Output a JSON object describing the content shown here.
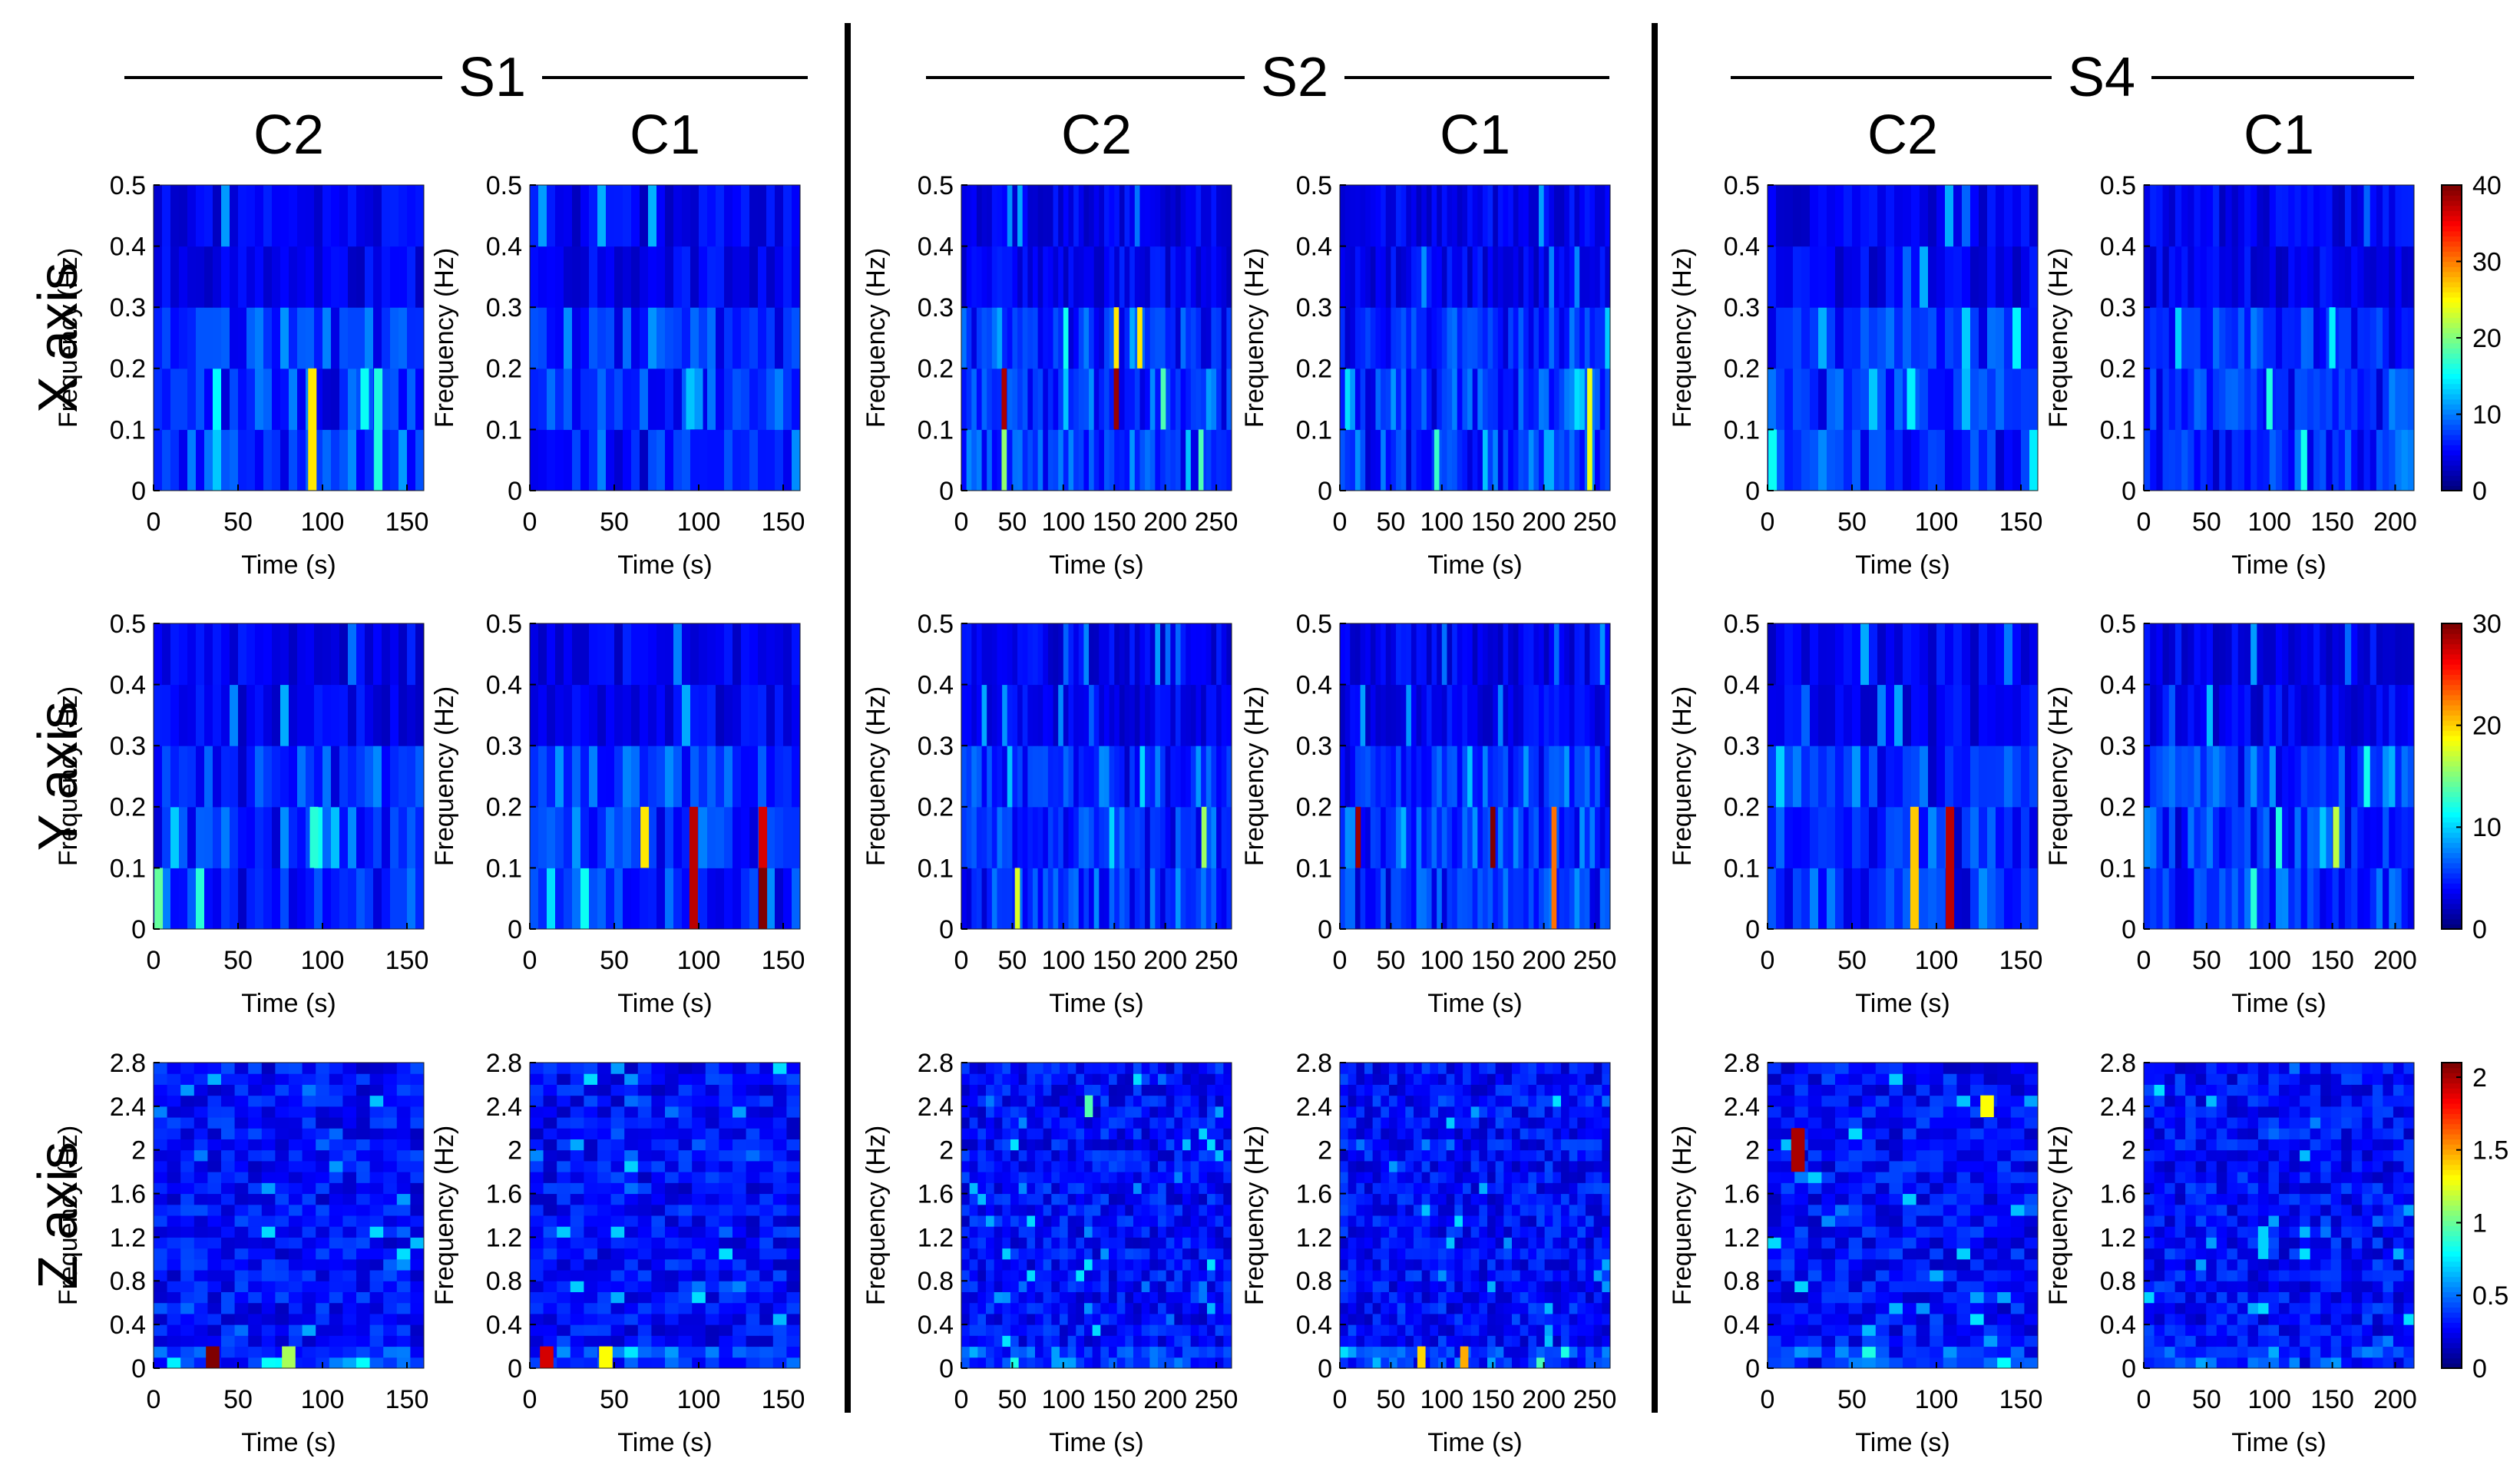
{
  "rows": [
    {
      "label": "X axis",
      "ylim": [
        0,
        0.5
      ],
      "yticks": [
        "0.5",
        "0.4",
        "0.3",
        "0.2",
        "0.1",
        "0"
      ],
      "colorbar_ticks": [
        "40",
        "30",
        "20",
        "10",
        "0"
      ],
      "colorbar_max": 40
    },
    {
      "label": "Y axis",
      "ylim": [
        0,
        0.5
      ],
      "yticks": [
        "0.5",
        "0.4",
        "0.3",
        "0.2",
        "0.1",
        "0"
      ],
      "colorbar_ticks": [
        "30",
        "20",
        "10",
        "0"
      ],
      "colorbar_max": 30
    },
    {
      "label": "Z axis",
      "ylim": [
        0,
        2.8
      ],
      "yticks": [
        "2.8",
        "2.4",
        "2",
        "1.6",
        "1.2",
        "0.8",
        "0.4",
        "0"
      ],
      "colorbar_ticks": [
        "2",
        "1.5",
        "1",
        "0.5",
        "0"
      ],
      "colorbar_max": 2.1
    }
  ],
  "groups": [
    {
      "label": "S1",
      "columns": [
        {
          "label": "C2",
          "xticks": [
            "0",
            "50",
            "100",
            "150"
          ],
          "xmax": 160
        },
        {
          "label": "C1",
          "xticks": [
            "0",
            "50",
            "100",
            "150"
          ],
          "xmax": 160
        }
      ]
    },
    {
      "label": "S2",
      "columns": [
        {
          "label": "C2",
          "xticks": [
            "0",
            "50",
            "100",
            "150",
            "200",
            "250"
          ],
          "xmax": 265
        },
        {
          "label": "C1",
          "xticks": [
            "0",
            "50",
            "100",
            "150",
            "200",
            "250"
          ],
          "xmax": 265
        }
      ]
    },
    {
      "label": "S4",
      "columns": [
        {
          "label": "C2",
          "xticks": [
            "0",
            "50",
            "100",
            "150"
          ],
          "xmax": 160
        },
        {
          "label": "C1",
          "xticks": [
            "0",
            "50",
            "100",
            "150",
            "200"
          ],
          "xmax": 215
        }
      ]
    }
  ],
  "xlabel": "Time (s)",
  "ylabel": "Frequency (Hz)",
  "chart_data": {
    "type": "heatmap",
    "title": "",
    "description_rows": [
      "X axis",
      "Y axis",
      "Z axis"
    ],
    "colormap": "jet",
    "xlabel": "Time (s)",
    "ylabel": "Frequency (Hz)",
    "panels": [
      {
        "row": "X axis",
        "group": "S1",
        "col": "C2",
        "hotspots": [
          {
            "t": 94,
            "f_low": 0,
            "f_high": 0.2,
            "value": 24
          },
          {
            "t": 133,
            "f_low": 0,
            "f_high": 0.2,
            "value": 13
          },
          {
            "t": 125,
            "f_low": 0.1,
            "f_high": 0.2,
            "value": 12
          }
        ]
      },
      {
        "row": "X axis",
        "group": "S1",
        "col": "C1",
        "hotspots": [
          {
            "t": 95,
            "f_low": 0.1,
            "f_high": 0.2,
            "value": 9
          },
          {
            "t": 100,
            "f_low": 0.1,
            "f_high": 0.2,
            "value": 7
          }
        ]
      },
      {
        "row": "X axis",
        "group": "S2",
        "col": "C2",
        "hotspots": [
          {
            "t": 42,
            "f_low": 0.1,
            "f_high": 0.2,
            "value": 38
          },
          {
            "t": 42,
            "f_low": 0,
            "f_high": 0.1,
            "value": 18
          },
          {
            "t": 152,
            "f_low": 0.1,
            "f_high": 0.2,
            "value": 39
          },
          {
            "t": 152,
            "f_low": 0.2,
            "f_high": 0.3,
            "value": 24
          },
          {
            "t": 175,
            "f_low": 0.2,
            "f_high": 0.3,
            "value": 24
          },
          {
            "t": 235,
            "f_low": 0,
            "f_high": 0.1,
            "value": 15
          },
          {
            "t": 198,
            "f_low": 0.1,
            "f_high": 0.2,
            "value": 15
          }
        ]
      },
      {
        "row": "X axis",
        "group": "S2",
        "col": "C1",
        "hotspots": [
          {
            "t": 245,
            "f_low": 0,
            "f_high": 0.2,
            "value": 22
          },
          {
            "t": 95,
            "f_low": 0,
            "f_high": 0.1,
            "value": 14
          }
        ]
      },
      {
        "row": "X axis",
        "group": "S4",
        "col": "C2",
        "hotspots": [
          {
            "t": 3,
            "f_low": 0,
            "f_high": 0.1,
            "value": 12
          },
          {
            "t": 85,
            "f_low": 0.1,
            "f_high": 0.2,
            "value": 11
          }
        ]
      },
      {
        "row": "X axis",
        "group": "S4",
        "col": "C1",
        "hotspots": [
          {
            "t": 100,
            "f_low": 0.1,
            "f_high": 0.2,
            "value": 13
          },
          {
            "t": 150,
            "f_low": 0.2,
            "f_high": 0.3,
            "value": 11
          }
        ]
      },
      {
        "row": "Y axis",
        "group": "S1",
        "col": "C2",
        "hotspots": [
          {
            "t": 3,
            "f_low": 0,
            "f_high": 0.1,
            "value": 12
          },
          {
            "t": 95,
            "f_low": 0.1,
            "f_high": 0.2,
            "value": 10
          }
        ]
      },
      {
        "row": "Y axis",
        "group": "S1",
        "col": "C1",
        "hotspots": [
          {
            "t": 97,
            "f_low": 0,
            "f_high": 0.2,
            "value": 28
          },
          {
            "t": 138,
            "f_low": 0.1,
            "f_high": 0.2,
            "value": 27
          },
          {
            "t": 138,
            "f_low": 0,
            "f_high": 0.1,
            "value": 30
          },
          {
            "t": 68,
            "f_low": 0.1,
            "f_high": 0.2,
            "value": 18
          }
        ]
      },
      {
        "row": "Y axis",
        "group": "S2",
        "col": "C2",
        "hotspots": [
          {
            "t": 55,
            "f_low": 0,
            "f_high": 0.1,
            "value": 16
          },
          {
            "t": 238,
            "f_low": 0.1,
            "f_high": 0.2,
            "value": 14
          }
        ]
      },
      {
        "row": "Y axis",
        "group": "S2",
        "col": "C1",
        "hotspots": [
          {
            "t": 18,
            "f_low": 0.1,
            "f_high": 0.2,
            "value": 29
          },
          {
            "t": 150,
            "f_low": 0.1,
            "f_high": 0.2,
            "value": 30
          },
          {
            "t": 210,
            "f_low": 0,
            "f_high": 0.2,
            "value": 22
          }
        ]
      },
      {
        "row": "Y axis",
        "group": "S4",
        "col": "C2",
        "hotspots": [
          {
            "t": 108,
            "f_low": 0,
            "f_high": 0.2,
            "value": 28
          },
          {
            "t": 87,
            "f_low": 0,
            "f_high": 0.2,
            "value": 19
          }
        ]
      },
      {
        "row": "Y axis",
        "group": "S4",
        "col": "C1",
        "hotspots": [
          {
            "t": 153,
            "f_low": 0.1,
            "f_high": 0.2,
            "value": 15
          }
        ]
      },
      {
        "row": "Z axis",
        "group": "S1",
        "col": "C2",
        "hotspots": [
          {
            "t": 35,
            "f_low": 0,
            "f_high": 0.2,
            "value": 2.1
          },
          {
            "t": 80,
            "f_low": 0,
            "f_high": 0.2,
            "value": 1.0
          }
        ]
      },
      {
        "row": "Z axis",
        "group": "S1",
        "col": "C1",
        "hotspots": [
          {
            "t": 10,
            "f_low": 0,
            "f_high": 0.2,
            "value": 1.9
          },
          {
            "t": 45,
            "f_low": 0,
            "f_high": 0.2,
            "value": 1.2
          }
        ]
      },
      {
        "row": "Z axis",
        "group": "S2",
        "col": "C2",
        "hotspots": [
          {
            "t": 125,
            "f_low": 2.3,
            "f_high": 2.5,
            "value": 0.8
          }
        ]
      },
      {
        "row": "Z axis",
        "group": "S2",
        "col": "C1",
        "hotspots": [
          {
            "t": 80,
            "f_low": 0,
            "f_high": 0.2,
            "value": 1.3
          },
          {
            "t": 122,
            "f_low": 0,
            "f_high": 0.2,
            "value": 1.4
          }
        ]
      },
      {
        "row": "Z axis",
        "group": "S4",
        "col": "C2",
        "hotspots": [
          {
            "t": 18,
            "f_low": 1.8,
            "f_high": 2.2,
            "value": 2.0
          },
          {
            "t": 130,
            "f_low": 2.3,
            "f_high": 2.5,
            "value": 1.2
          }
        ]
      },
      {
        "row": "Z axis",
        "group": "S4",
        "col": "C1",
        "hotspots": [
          {
            "t": 95,
            "f_low": 1.0,
            "f_high": 1.3,
            "value": 0.5
          }
        ]
      }
    ]
  }
}
